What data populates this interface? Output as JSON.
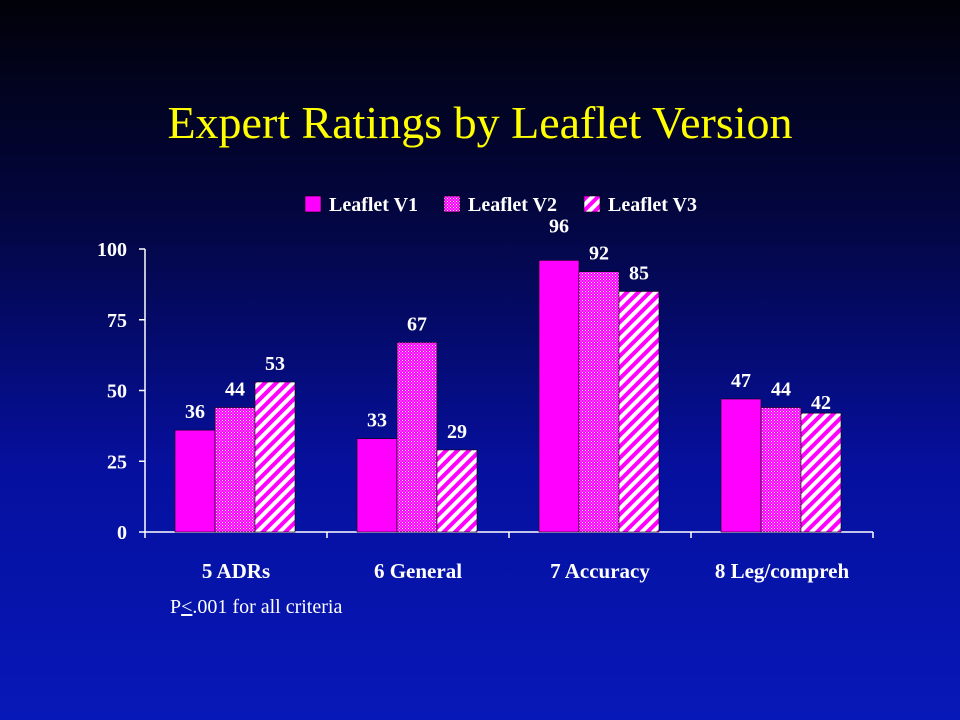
{
  "title": "Expert Ratings by Leaflet Version",
  "footnote": {
    "prefix": "P",
    "operator": "<",
    "rest": ".001 for all criteria"
  },
  "colors": {
    "background": "#06109e",
    "title": "#ffff00",
    "text": "#ffffff",
    "bar": "#ff00ff"
  },
  "chart_data": {
    "type": "bar",
    "categories": [
      "5 ADRs",
      "6 General",
      "7 Accuracy",
      "8 Leg/compreh"
    ],
    "series": [
      {
        "name": "Leaflet V1",
        "values": [
          36,
          33,
          96,
          47
        ],
        "pattern": "solid"
      },
      {
        "name": "Leaflet V2",
        "values": [
          44,
          67,
          92,
          44
        ],
        "pattern": "dotted"
      },
      {
        "name": "Leaflet V3",
        "values": [
          53,
          29,
          85,
          42
        ],
        "pattern": "hatched"
      }
    ],
    "ylim": [
      0,
      100
    ],
    "yticks": [
      0,
      25,
      50,
      75,
      100
    ],
    "grid": false,
    "legend": "top",
    "data_labels": true
  }
}
